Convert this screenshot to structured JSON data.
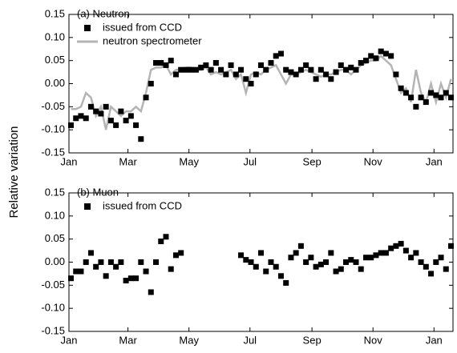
{
  "chart_data": [
    {
      "type": "scatter",
      "annotation": "(a) Neutron",
      "ylabel": "Relative variation",
      "xlim": [
        0,
        384
      ],
      "ylim": [
        -0.15,
        0.15
      ],
      "xticks": [
        {
          "value": 0,
          "label": "Jan"
        },
        {
          "value": 59,
          "label": "Mar"
        },
        {
          "value": 120,
          "label": "May"
        },
        {
          "value": 181,
          "label": "Jul"
        },
        {
          "value": 243,
          "label": "Sep"
        },
        {
          "value": 304,
          "label": "Nov"
        },
        {
          "value": 365,
          "label": "Jan"
        }
      ],
      "yticks": [
        {
          "value": -0.15,
          "label": "-0.15"
        },
        {
          "value": -0.1,
          "label": "-0.10"
        },
        {
          "value": -0.05,
          "label": "-0.05"
        },
        {
          "value": 0,
          "label": "0.00"
        },
        {
          "value": 0.05,
          "label": "0.05"
        },
        {
          "value": 0.1,
          "label": "0.10"
        },
        {
          "value": 0.15,
          "label": "0.15"
        }
      ],
      "series": [
        {
          "name": "issued from CCD",
          "color": "#000000",
          "style": "marker",
          "x": [
            2,
            7,
            12,
            17,
            22,
            27,
            32,
            37,
            42,
            47,
            52,
            57,
            62,
            67,
            72,
            77,
            82,
            87,
            92,
            97,
            102,
            107,
            112,
            117,
            122,
            127,
            132,
            137,
            142,
            147,
            152,
            157,
            162,
            167,
            172,
            177,
            182,
            187,
            192,
            197,
            202,
            207,
            212,
            217,
            222,
            227,
            232,
            237,
            242,
            247,
            252,
            257,
            262,
            267,
            272,
            277,
            282,
            287,
            292,
            297,
            302,
            307,
            312,
            317,
            322,
            327,
            332,
            337,
            342,
            347,
            352,
            357,
            362,
            367,
            372,
            377,
            382
          ],
          "values": [
            -0.09,
            -0.075,
            -0.07,
            -0.075,
            -0.05,
            -0.06,
            -0.065,
            -0.05,
            -0.08,
            -0.09,
            -0.06,
            -0.08,
            -0.07,
            -0.09,
            -0.12,
            -0.03,
            0.0,
            0.045,
            0.045,
            0.04,
            0.05,
            0.02,
            0.03,
            0.03,
            0.03,
            0.03,
            0.035,
            0.04,
            0.03,
            0.045,
            0.03,
            0.02,
            0.04,
            0.02,
            0.03,
            0.01,
            0.0,
            0.02,
            0.04,
            0.03,
            0.045,
            0.06,
            0.065,
            0.03,
            0.025,
            0.02,
            0.03,
            0.04,
            0.03,
            0.01,
            0.03,
            0.02,
            0.01,
            0.025,
            0.04,
            0.03,
            0.035,
            0.03,
            0.045,
            0.05,
            0.06,
            0.055,
            0.07,
            0.065,
            0.06,
            0.02,
            -0.01,
            -0.02,
            -0.03,
            -0.05,
            -0.03,
            -0.04,
            -0.02,
            -0.025,
            -0.03,
            -0.02,
            -0.03
          ]
        },
        {
          "name": "neutron spectrometer",
          "color": "#b4b4b4",
          "style": "line",
          "x": [
            2,
            7,
            12,
            17,
            22,
            27,
            32,
            37,
            42,
            47,
            52,
            57,
            62,
            67,
            72,
            77,
            82,
            87,
            92,
            97,
            102,
            107,
            112,
            117,
            122,
            127,
            132,
            137,
            142,
            147,
            152,
            157,
            162,
            167,
            172,
            177,
            182,
            187,
            192,
            197,
            202,
            207,
            212,
            217,
            222,
            227,
            232,
            237,
            242,
            247,
            252,
            257,
            262,
            267,
            272,
            277,
            282,
            287,
            292,
            297,
            302,
            307,
            312,
            317,
            322,
            327,
            332,
            337,
            342,
            347,
            352,
            357,
            362,
            367,
            372,
            377,
            382
          ],
          "values": [
            -0.055,
            -0.055,
            -0.05,
            -0.02,
            -0.03,
            -0.07,
            -0.05,
            -0.1,
            -0.05,
            -0.06,
            -0.07,
            -0.06,
            -0.06,
            -0.05,
            -0.06,
            -0.02,
            0.03,
            0.035,
            0.035,
            0.04,
            0.02,
            0.03,
            0.03,
            0.035,
            0.035,
            0.03,
            0.03,
            0.035,
            0.02,
            0.025,
            0.02,
            0.025,
            0.03,
            0.01,
            0.02,
            -0.02,
            0.02,
            0.025,
            0.02,
            0.03,
            0.035,
            0.04,
            0.02,
            0.0,
            0.02,
            0.02,
            0.025,
            0.03,
            0.025,
            0.02,
            0.015,
            0.02,
            0.02,
            0.025,
            0.03,
            0.03,
            0.02,
            0.03,
            0.04,
            0.045,
            0.05,
            0.05,
            0.06,
            0.05,
            0.04,
            0.01,
            -0.02,
            -0.01,
            -0.04,
            0.03,
            -0.02,
            -0.04,
            0.0,
            -0.04,
            0.0,
            -0.03,
            0.01
          ]
        }
      ]
    },
    {
      "type": "scatter",
      "annotation": "(b) Muon",
      "xlim": [
        0,
        384
      ],
      "ylim": [
        -0.15,
        0.15
      ],
      "xticks": [
        {
          "value": 0,
          "label": "Jan"
        },
        {
          "value": 59,
          "label": "Mar"
        },
        {
          "value": 120,
          "label": "May"
        },
        {
          "value": 181,
          "label": "Jul"
        },
        {
          "value": 243,
          "label": "Sep"
        },
        {
          "value": 304,
          "label": "Nov"
        },
        {
          "value": 365,
          "label": "Jan"
        }
      ],
      "yticks": [
        {
          "value": -0.15,
          "label": "-0.15"
        },
        {
          "value": -0.1,
          "label": "-0.10"
        },
        {
          "value": -0.05,
          "label": "-0.05"
        },
        {
          "value": 0,
          "label": "0.00"
        },
        {
          "value": 0.05,
          "label": "0.05"
        },
        {
          "value": 0.1,
          "label": "0.10"
        },
        {
          "value": 0.15,
          "label": "0.15"
        }
      ],
      "series": [
        {
          "name": "issued from CCD",
          "color": "#000000",
          "style": "marker",
          "x": [
            2,
            7,
            12,
            17,
            22,
            27,
            32,
            37,
            42,
            47,
            52,
            57,
            62,
            67,
            72,
            77,
            82,
            87,
            92,
            97,
            102,
            107,
            112,
            172,
            177,
            182,
            187,
            192,
            197,
            202,
            207,
            212,
            217,
            222,
            227,
            232,
            237,
            242,
            247,
            252,
            257,
            262,
            267,
            272,
            277,
            282,
            287,
            292,
            297,
            302,
            307,
            312,
            317,
            322,
            327,
            332,
            337,
            342,
            347,
            352,
            357,
            362,
            367,
            372,
            377,
            382
          ],
          "values": [
            -0.035,
            -0.02,
            -0.02,
            0.0,
            0.02,
            -0.01,
            0.0,
            -0.03,
            0.0,
            -0.01,
            0.0,
            -0.04,
            -0.035,
            -0.035,
            0.0,
            -0.02,
            -0.065,
            0.0,
            0.045,
            0.055,
            -0.015,
            0.015,
            0.02,
            0.015,
            0.005,
            0.0,
            -0.01,
            0.02,
            -0.02,
            0.0,
            -0.01,
            -0.03,
            -0.045,
            0.01,
            0.02,
            0.035,
            0.0,
            0.01,
            -0.01,
            -0.005,
            0.0,
            0.02,
            -0.02,
            -0.015,
            0.0,
            0.005,
            0.0,
            -0.015,
            0.01,
            0.01,
            0.015,
            0.02,
            0.02,
            0.03,
            0.035,
            0.04,
            0.025,
            0.01,
            0.02,
            0.0,
            -0.01,
            -0.025,
            0.0,
            0.01,
            -0.015,
            0.035
          ]
        }
      ]
    }
  ]
}
